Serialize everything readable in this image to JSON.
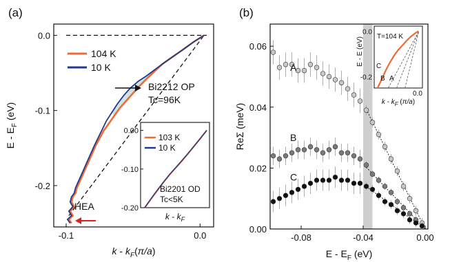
{
  "chart_data": [
    {
      "panel": "(a)",
      "type": "line",
      "xlabel": "k - kF(π/a)",
      "ylabel": "E - EF (eV)",
      "xlim": [
        -0.1,
        0.005
      ],
      "ylim": [
        -0.255,
        0.015
      ],
      "xticks": [
        "-0.1",
        "0.0"
      ],
      "xtick_values": [
        -0.1,
        0.0
      ],
      "yticks": [
        "0.0",
        "-0.1",
        "-0.2"
      ],
      "ytick_values": [
        0.0,
        -0.1,
        -0.2
      ],
      "series": [
        {
          "name": "104 K",
          "color": "#f06a35",
          "x": [
            0.003,
            -0.005,
            -0.012,
            -0.02,
            -0.028,
            -0.034,
            -0.04,
            -0.045,
            -0.05,
            -0.055,
            -0.06,
            -0.064,
            -0.068,
            -0.072,
            -0.075,
            -0.078,
            -0.08,
            -0.082,
            -0.084,
            -0.086,
            -0.088,
            -0.09,
            -0.092,
            -0.093,
            -0.095,
            -0.096,
            -0.094,
            -0.097,
            -0.095,
            -0.098,
            -0.096
          ],
          "y": [
            0.0,
            -0.009,
            -0.018,
            -0.028,
            -0.038,
            -0.048,
            -0.058,
            -0.067,
            -0.077,
            -0.087,
            -0.097,
            -0.107,
            -0.117,
            -0.127,
            -0.137,
            -0.147,
            -0.155,
            -0.163,
            -0.171,
            -0.179,
            -0.187,
            -0.195,
            -0.203,
            -0.21,
            -0.215,
            -0.222,
            -0.228,
            -0.234,
            -0.24,
            -0.245,
            -0.25
          ]
        },
        {
          "name": "10 K",
          "color": "#1f3a8a",
          "x": [
            0.003,
            -0.005,
            -0.012,
            -0.02,
            -0.028,
            -0.034,
            -0.04,
            -0.046,
            -0.052,
            -0.057,
            -0.062,
            -0.066,
            -0.07,
            -0.073,
            -0.076,
            -0.079,
            -0.081,
            -0.083,
            -0.085,
            -0.087,
            -0.089,
            -0.091,
            -0.093,
            -0.094,
            -0.096,
            -0.097,
            -0.095,
            -0.098,
            -0.096,
            -0.099,
            -0.097
          ],
          "y": [
            0.0,
            -0.009,
            -0.018,
            -0.028,
            -0.038,
            -0.046,
            -0.054,
            -0.061,
            -0.07,
            -0.08,
            -0.092,
            -0.103,
            -0.114,
            -0.125,
            -0.136,
            -0.147,
            -0.155,
            -0.163,
            -0.171,
            -0.179,
            -0.187,
            -0.195,
            -0.203,
            -0.21,
            -0.215,
            -0.222,
            -0.228,
            -0.234,
            -0.24,
            -0.245,
            -0.25
          ]
        }
      ],
      "dashed_lines": [
        {
          "x": [
            -0.1,
            0.005
          ],
          "y": [
            0.0,
            0.0
          ]
        },
        {
          "x": [
            -0.098,
            0.003
          ],
          "y": [
            -0.24,
            0.0
          ]
        }
      ],
      "annotations": [
        "Bi2212 OP",
        "Tc=96K",
        "HEA"
      ]
    },
    {
      "panel": "inset (a)",
      "type": "line",
      "xlabel": "k - kF",
      "xlim": [
        -0.1,
        0.0
      ],
      "ylim": [
        -0.2,
        0.01
      ],
      "yticks": [
        "0.00",
        "-0.10",
        "-0.20"
      ],
      "ytick_values": [
        0.0,
        -0.1,
        -0.2
      ],
      "series": [
        {
          "name": "103 K",
          "color": "#f06a35",
          "x": [
            -0.1,
            -0.09,
            -0.08,
            -0.07,
            -0.06,
            -0.05,
            -0.04,
            -0.03,
            -0.02,
            -0.01,
            0.0
          ],
          "y": [
            -0.2,
            -0.178,
            -0.156,
            -0.135,
            -0.115,
            -0.097,
            -0.079,
            -0.06,
            -0.04,
            -0.02,
            0.0
          ]
        },
        {
          "name": "10 K",
          "color": "#1f3a8a",
          "x": [
            -0.1,
            -0.09,
            -0.08,
            -0.07,
            -0.06,
            -0.05,
            -0.04,
            -0.03,
            -0.02,
            -0.01,
            0.0
          ],
          "y": [
            -0.2,
            -0.177,
            -0.155,
            -0.134,
            -0.114,
            -0.096,
            -0.078,
            -0.059,
            -0.04,
            -0.02,
            0.0
          ]
        }
      ],
      "annotations": [
        "Bi2201 OD",
        "Tc<5K"
      ]
    },
    {
      "panel": "(b)",
      "type": "scatter",
      "xlabel": "E - EF (eV)",
      "ylabel": "ReΣ (meV)",
      "xlim": [
        -0.1,
        0.0
      ],
      "ylim": [
        0.0,
        0.065
      ],
      "xticks": [
        "-0.08",
        "-0.04",
        "0.00"
      ],
      "xtick_values": [
        -0.08,
        -0.04,
        0.0
      ],
      "yticks": [
        "0.00",
        "0.02",
        "0.04",
        "0.06"
      ],
      "ytick_values": [
        0.0,
        0.02,
        0.04,
        0.06
      ],
      "shaded_band": [
        -0.04,
        -0.034
      ],
      "series": [
        {
          "name": "A",
          "color": "#c8c8c8",
          "x": [
            -0.098,
            -0.094,
            -0.09,
            -0.086,
            -0.082,
            -0.078,
            -0.074,
            -0.07,
            -0.066,
            -0.062,
            -0.058,
            -0.054,
            -0.05,
            -0.046,
            -0.042,
            -0.038,
            -0.034,
            -0.03,
            -0.026,
            -0.022,
            -0.018,
            -0.014,
            -0.01,
            -0.006,
            -0.002
          ],
          "y": [
            0.058,
            0.053,
            0.054,
            0.054,
            0.052,
            0.052,
            0.054,
            0.053,
            0.051,
            0.05,
            0.049,
            0.048,
            0.046,
            0.044,
            0.042,
            0.039,
            0.035,
            0.031,
            0.027,
            0.023,
            0.019,
            0.014,
            0.01,
            0.006,
            0.002
          ]
        },
        {
          "name": "B",
          "color": "#7a7a7a",
          "x": [
            -0.098,
            -0.094,
            -0.09,
            -0.086,
            -0.082,
            -0.078,
            -0.074,
            -0.07,
            -0.066,
            -0.062,
            -0.058,
            -0.054,
            -0.05,
            -0.046,
            -0.042,
            -0.038,
            -0.034,
            -0.03,
            -0.026,
            -0.022,
            -0.018,
            -0.014,
            -0.01,
            -0.006,
            -0.002
          ],
          "y": [
            0.024,
            0.023,
            0.024,
            0.025,
            0.026,
            0.026,
            0.027,
            0.026,
            0.025,
            0.026,
            0.027,
            0.025,
            0.025,
            0.024,
            0.023,
            0.021,
            0.018,
            0.016,
            0.014,
            0.012,
            0.009,
            0.007,
            0.005,
            0.003,
            0.001
          ]
        },
        {
          "name": "C",
          "color": "#111111",
          "x": [
            -0.098,
            -0.094,
            -0.09,
            -0.086,
            -0.082,
            -0.078,
            -0.074,
            -0.07,
            -0.066,
            -0.062,
            -0.058,
            -0.054,
            -0.05,
            -0.046,
            -0.042,
            -0.038,
            -0.034,
            -0.03,
            -0.026,
            -0.022,
            -0.018,
            -0.014,
            -0.01,
            -0.006,
            -0.002
          ],
          "y": [
            0.009,
            0.01,
            0.011,
            0.012,
            0.013,
            0.014,
            0.015,
            0.016,
            0.016,
            0.016,
            0.017,
            0.016,
            0.016,
            0.015,
            0.015,
            0.014,
            0.013,
            0.011,
            0.009,
            0.008,
            0.006,
            0.005,
            0.003,
            0.002,
            0.001
          ]
        }
      ]
    },
    {
      "panel": "inset (b)",
      "type": "line",
      "title": "T=104 K",
      "xlabel": "k - kF (π/a)",
      "ylabel": "E - E (eV)",
      "yticks": [
        "0.0",
        "-0.2"
      ],
      "ytick_values": [
        0.0,
        -0.2
      ],
      "xtick_labels": [
        "0.0"
      ],
      "xlim": [
        -0.1,
        0.005
      ],
      "ylim": [
        -0.25,
        0.01
      ],
      "curve_labels": [
        "C",
        "B",
        "A"
      ],
      "series": [
        {
          "name": "104 K",
          "color": "#f06a35",
          "x": [
            -0.095,
            -0.085,
            -0.075,
            -0.065,
            -0.055,
            -0.045,
            -0.035,
            -0.025,
            -0.015,
            -0.005,
            0.002
          ],
          "y": [
            -0.25,
            -0.21,
            -0.17,
            -0.135,
            -0.105,
            -0.08,
            -0.06,
            -0.04,
            -0.022,
            -0.008,
            0.0
          ]
        }
      ]
    }
  ]
}
